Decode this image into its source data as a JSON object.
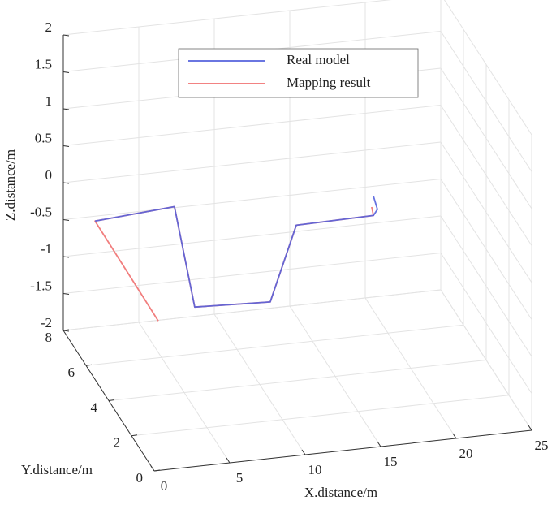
{
  "chart_data": {
    "type": "line3d",
    "xlabel": "X.distance/m",
    "ylabel": "Y.distance/m",
    "zlabel": "Z.distance/m",
    "xlim": [
      0,
      25
    ],
    "xticks": [
      0,
      5,
      10,
      15,
      20,
      25
    ],
    "ylim": [
      0,
      8
    ],
    "yticks": [
      0,
      2,
      4,
      6,
      8
    ],
    "zlim": [
      -2,
      2
    ],
    "zticks": [
      -2,
      -1.5,
      -1,
      -0.5,
      0,
      0.5,
      1,
      1.5,
      2
    ],
    "grid": true,
    "legend": "top",
    "series": [
      {
        "name": "Mapping result",
        "color": "#f07070",
        "x": [
          1.02,
          0.22,
          5.48,
          4.19,
          9.19,
          13.55,
          18.66,
          18.92
        ],
        "y": [
          1,
          5.5,
          5.5,
          2,
          2,
          5.5,
          5.5,
          6
        ],
        "z": [
          -0.23,
          0.07,
          0.15,
          -0.35,
          -0.39,
          -0.28,
          -0.26,
          -0.27
        ]
      },
      {
        "name": "Real model",
        "color": "#5563dd",
        "x": [
          0.22,
          5.48,
          4.19,
          9.19,
          13.55,
          18.66,
          19.3,
          19.26
        ],
        "y": [
          5.5,
          5.5,
          2,
          2,
          5.5,
          5.5,
          6,
          6.3
        ],
        "z": [
          0.07,
          0.15,
          -0.35,
          -0.39,
          -0.28,
          -0.26,
          -0.31,
          -0.2
        ]
      }
    ]
  }
}
